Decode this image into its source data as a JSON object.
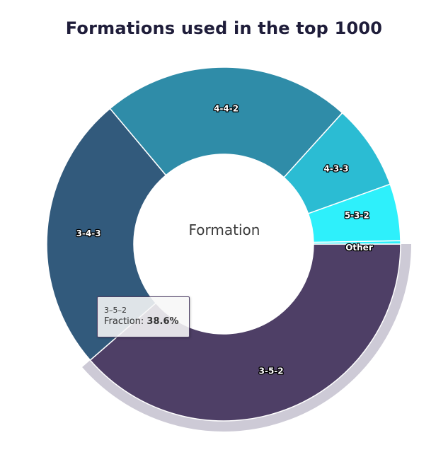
{
  "chart_data": {
    "type": "pie",
    "title": "Formations used in the top 1000",
    "center_label": "Formation",
    "hover_index": 0,
    "slices": [
      {
        "label": "3-5-2",
        "value": 38.6,
        "color": "#4e3f66"
      },
      {
        "label": "3-4-3",
        "value": 25.3,
        "color": "#325a7c"
      },
      {
        "label": "4-4-2",
        "value": 22.8,
        "color": "#2f8ca8"
      },
      {
        "label": "4-3-3",
        "value": 7.8,
        "color": "#2bbcd3"
      },
      {
        "label": "5-3-2",
        "value": 5.2,
        "color": "#2ef0fb"
      },
      {
        "label": "Other",
        "value": 0.3,
        "color": "#2ef0fb"
      }
    ]
  },
  "tooltip": {
    "name": "3–5–2",
    "series_label": "Fraction:",
    "value": "38.6%"
  },
  "colors": {
    "hover_halo": "#cdcad6",
    "title": "#1f1d3a"
  }
}
